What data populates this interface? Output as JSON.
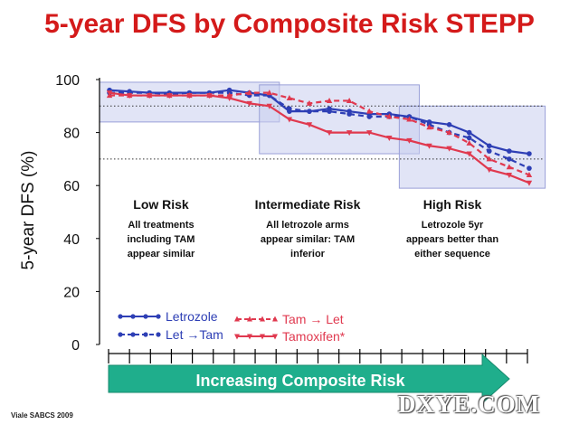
{
  "page": {
    "title": "5-year DFS by Composite Risk STEPP",
    "citation": "Viale SABCS 2009",
    "watermark": "DXYE.COM"
  },
  "colors": {
    "title": "#d41a1a",
    "blue": "#2e3fb5",
    "red": "#e0394f",
    "band": "#c9cdef",
    "band_edge": "#9aa0d8",
    "arrow": "#1fae8c"
  },
  "chart_data": {
    "type": "line",
    "title": "5-year DFS by Composite Risk STEPP",
    "ylabel": "5-year DFS (%)",
    "xlabel": "Increasing Composite Risk",
    "ylim": [
      0,
      100
    ],
    "yticks": [
      0,
      20,
      40,
      60,
      80,
      100
    ],
    "x_points": [
      1,
      2,
      3,
      4,
      5,
      6,
      7,
      8,
      9,
      10,
      11,
      12,
      13,
      14,
      15,
      16,
      17,
      18,
      19,
      20,
      21,
      22
    ],
    "reference_lines": [
      90,
      70
    ],
    "series": [
      {
        "name": "Letrozole",
        "color": "#2e3fb5",
        "dash": "solid",
        "marker": "circle",
        "values": [
          96,
          95.5,
          95,
          95,
          95,
          95,
          96,
          95,
          94,
          88,
          88,
          89,
          88,
          87,
          87,
          86,
          84,
          83,
          80,
          75,
          73,
          72
        ]
      },
      {
        "name": "Let →Tam",
        "color": "#2e3fb5",
        "dash": "dashed",
        "marker": "circle",
        "values": [
          95,
          95,
          95,
          94.5,
          95,
          95,
          95,
          94,
          94,
          89,
          88,
          88,
          87,
          86,
          86,
          86,
          83,
          80,
          78,
          73,
          70,
          66.5
        ]
      },
      {
        "name": "Tam → Let",
        "color": "#e0394f",
        "dash": "dashed",
        "marker": "triangle-up",
        "values": [
          94,
          94,
          94,
          94,
          94,
          94,
          94,
          95,
          95,
          93,
          91,
          92,
          92,
          88,
          86,
          85,
          82,
          80,
          76,
          70,
          67,
          64
        ]
      },
      {
        "name": "Tamoxifen*",
        "color": "#e0394f",
        "dash": "solid",
        "marker": "triangle-down",
        "values": [
          95,
          94,
          94,
          94,
          94,
          94,
          93,
          91,
          90,
          85,
          83,
          80,
          80,
          80,
          78,
          77,
          75,
          74,
          72,
          66,
          64,
          61
        ]
      }
    ],
    "regions": [
      {
        "name": "Low Risk",
        "description": "All treatments including TAM appear similar",
        "x_range": [
          0.5,
          9.5
        ],
        "y_range": [
          84,
          99
        ]
      },
      {
        "name": "Intermediate Risk",
        "description": "All letrozole arms appear similar: TAM inferior",
        "x_range": [
          8.5,
          16.5
        ],
        "y_range": [
          72,
          98
        ]
      },
      {
        "name": "High Risk",
        "description": "Letrozole 5yr appears better than either sequence",
        "x_range": [
          15.5,
          22.8
        ],
        "y_range": [
          59,
          90
        ]
      }
    ],
    "region_labels": [
      {
        "title": "Low Risk",
        "lines": [
          "All treatments",
          "including TAM",
          "appear similar"
        ]
      },
      {
        "title": "Intermediate Risk",
        "lines": [
          "All letrozole arms",
          "appear similar: TAM",
          "inferior"
        ]
      },
      {
        "title": "High Risk",
        "lines": [
          "Letrozole 5yr",
          "appears better than",
          "either sequence"
        ]
      }
    ],
    "grid": false,
    "legend_position": "bottom-left"
  }
}
